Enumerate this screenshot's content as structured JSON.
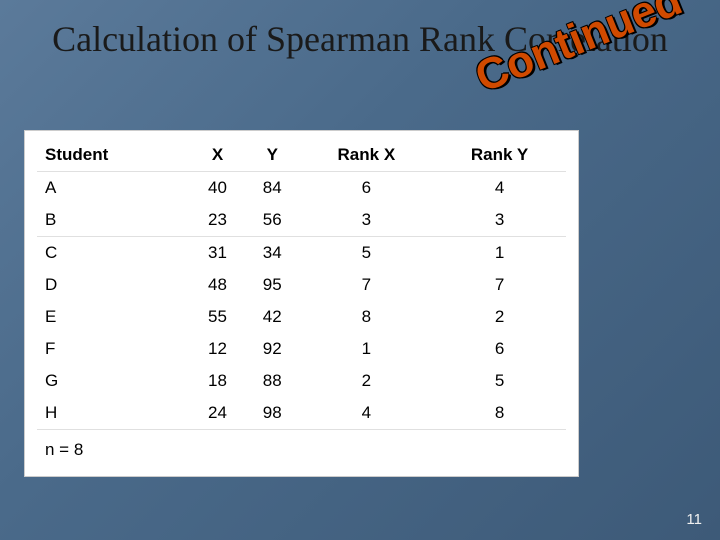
{
  "slide": {
    "title": "Calculation of Spearman Rank Correlation",
    "continued_label": "Continued",
    "page_number": "11",
    "background_gradient": [
      "#5b7a9a",
      "#4a6a8a",
      "#3d5a78"
    ],
    "continued_color": "#d04a00",
    "title_fontsize_pt": 28,
    "continued_fontsize_pt": 34
  },
  "table": {
    "type": "table",
    "background_color": "#ffffff",
    "border_color": "#cccccc",
    "header_font_weight": 700,
    "cell_fontsize_pt": 13,
    "columns": [
      "Student",
      "X",
      "Y",
      "Rank  X",
      "Rank Y"
    ],
    "column_widths": [
      0.22,
      0.16,
      0.16,
      0.23,
      0.23
    ],
    "rows": [
      [
        "A",
        "40",
        "84",
        "6",
        "4"
      ],
      [
        "B",
        "23",
        "56",
        "3",
        "3"
      ],
      [
        "C",
        "31",
        "34",
        "5",
        "1"
      ],
      [
        "D",
        "48",
        "95",
        "7",
        "7"
      ],
      [
        "E",
        "55",
        "42",
        "8",
        "2"
      ],
      [
        "F",
        "12",
        "92",
        "1",
        "6"
      ],
      [
        "G",
        "18",
        "88",
        "2",
        "5"
      ],
      [
        "H",
        "24",
        "98",
        "4",
        "8"
      ]
    ],
    "section_break_after_row": 1,
    "footer_text": "n = 8"
  }
}
